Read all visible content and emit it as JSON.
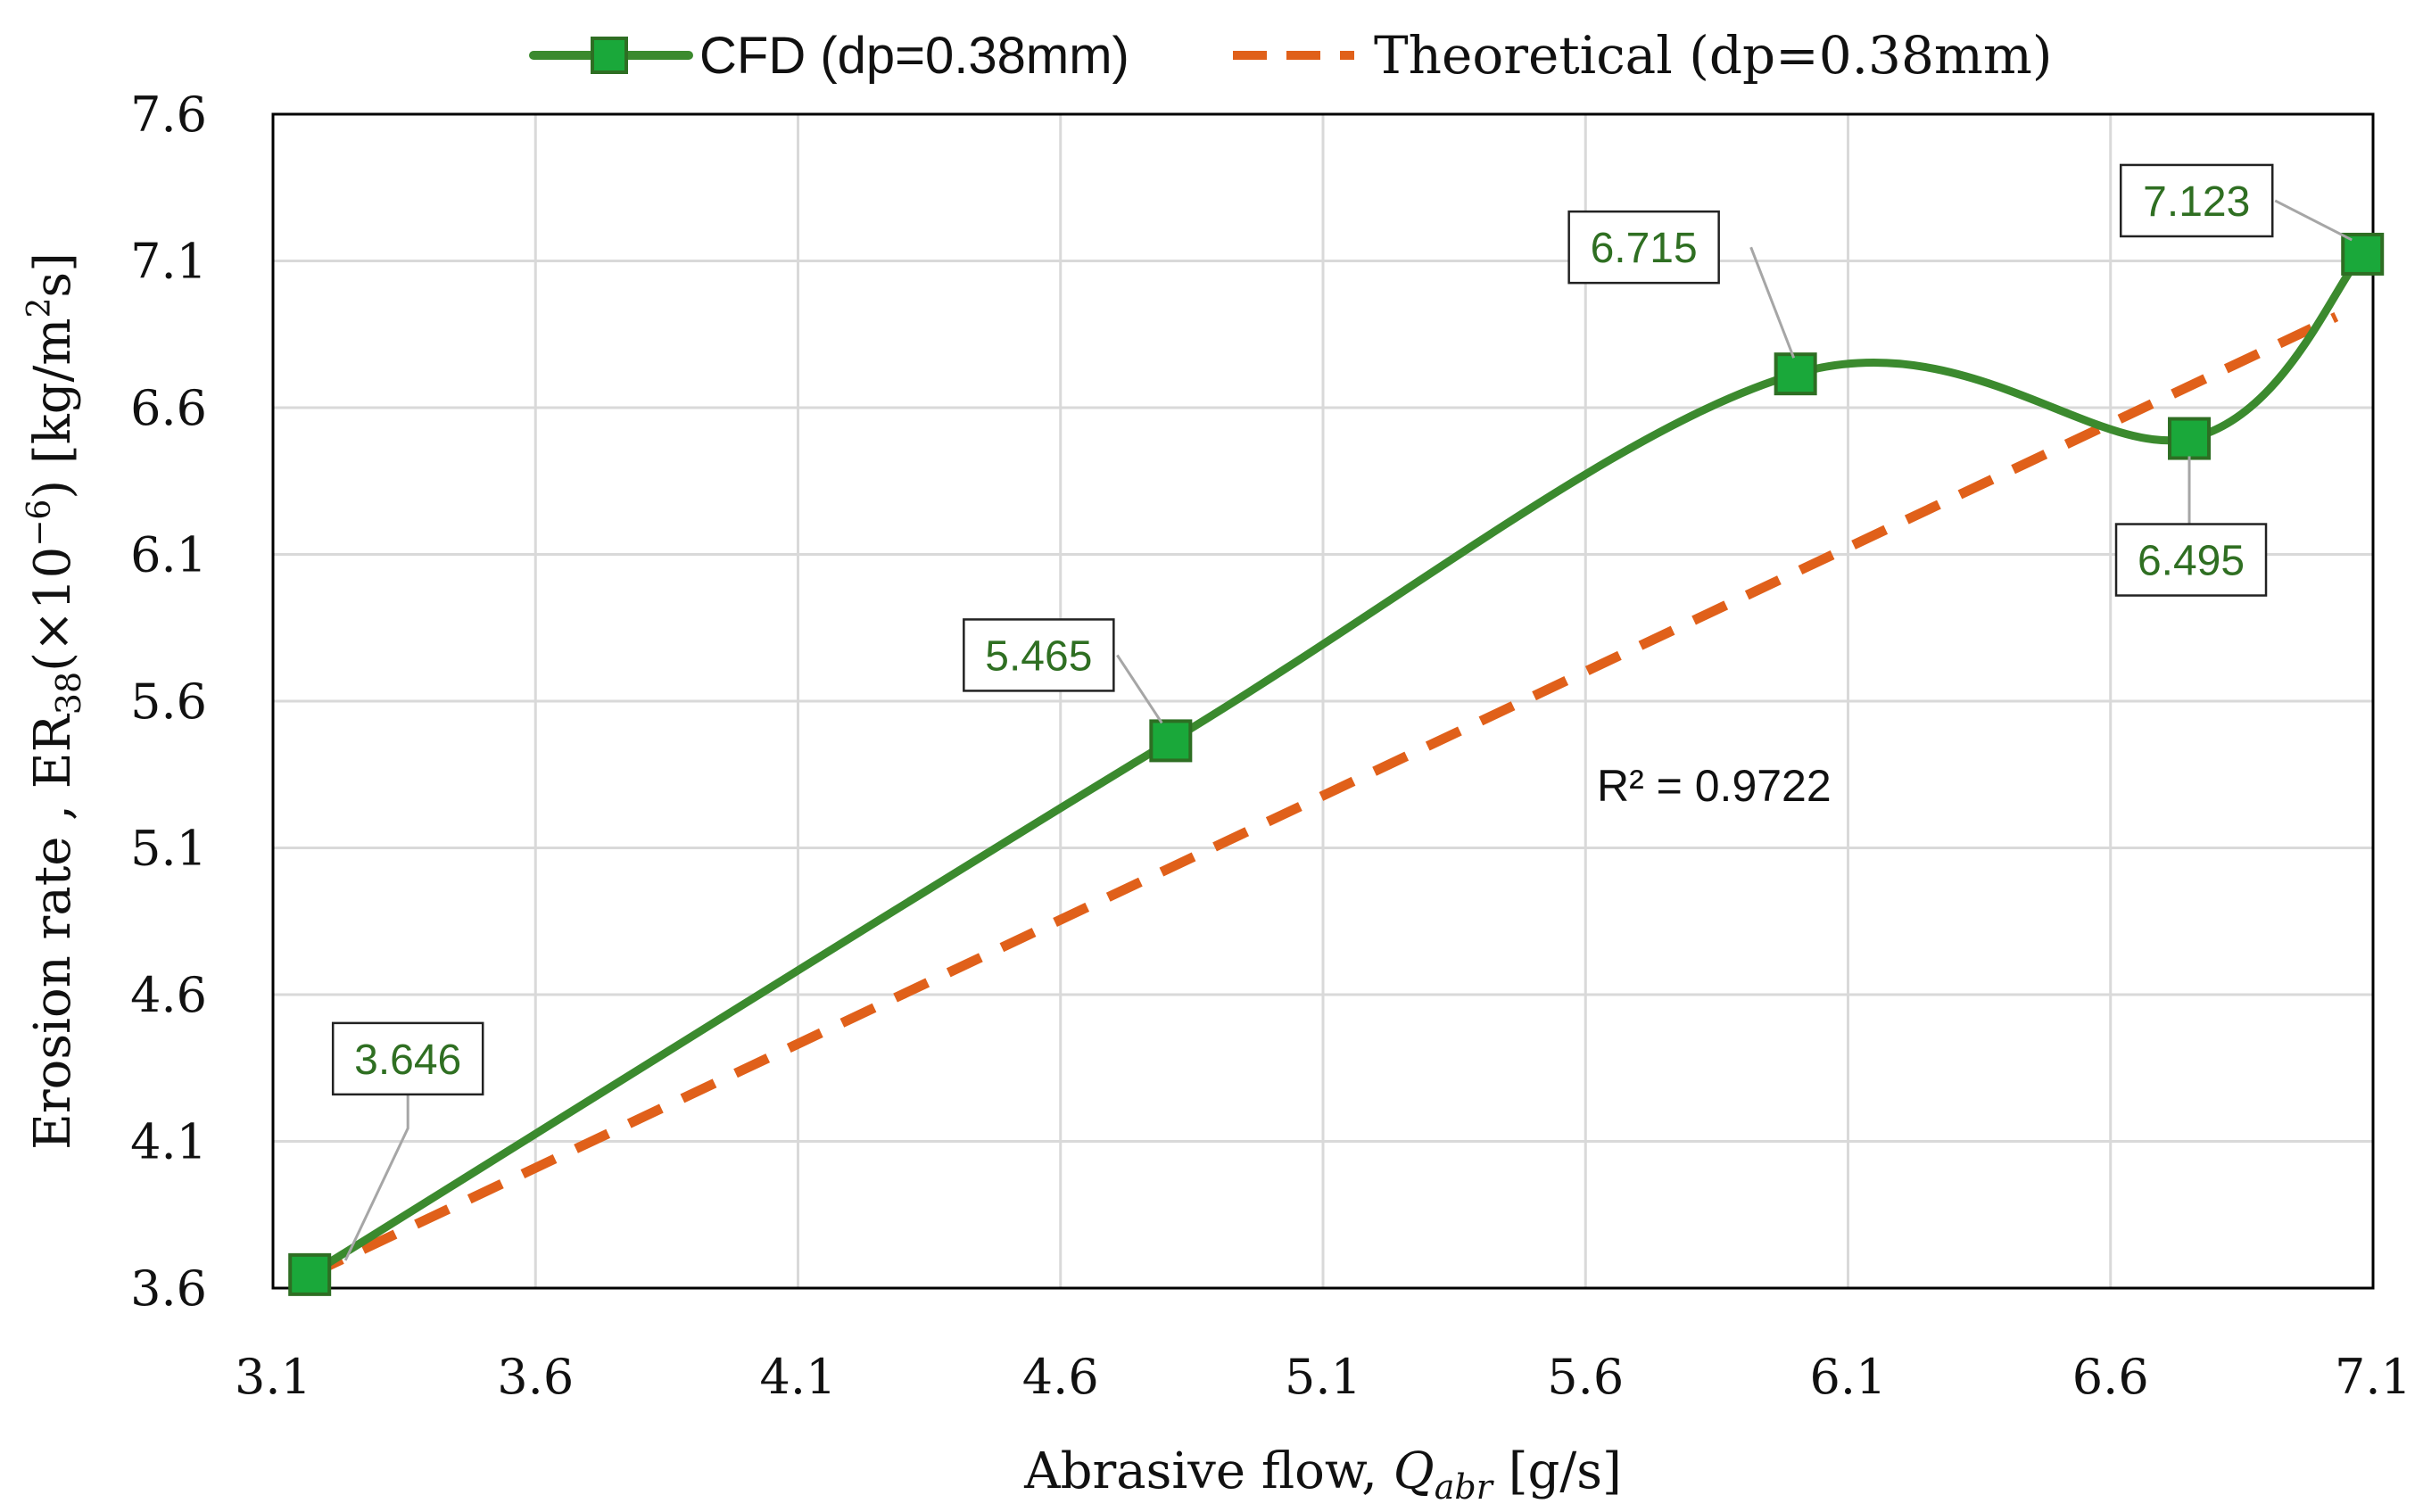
{
  "chart_data": {
    "type": "line",
    "title": "",
    "xlabel": "Abrasive flow,",
    "xlabel_symbol": "Q",
    "xlabel_subscript": "abr",
    "xlabel_unit": "[g/s]",
    "ylabel_prefix": "Erosion rate , ER",
    "ylabel_subscript": "38",
    "ylabel_mid": "(×10",
    "ylabel_exp": "−6",
    "ylabel_close": ") [kg/m",
    "ylabel_unit_exp": "2",
    "ylabel_tail": "s]",
    "xlim": [
      3.1,
      7.1
    ],
    "ylim": [
      3.6,
      7.6
    ],
    "x_ticks": [
      "3.1",
      "3.6",
      "4.1",
      "4.6",
      "5.1",
      "5.6",
      "6.1",
      "6.6",
      "7.1"
    ],
    "y_ticks": [
      "3.6",
      "4.1",
      "4.6",
      "5.1",
      "5.6",
      "6.1",
      "6.6",
      "7.1",
      "7.6"
    ],
    "grid": true,
    "legend_position": "top",
    "series": [
      {
        "name": "CFD (dp=0.38mm)",
        "style": "solid-smooth-square-markers",
        "x": [
          3.17,
          4.81,
          6.0,
          6.75,
          7.08
        ],
        "y": [
          3.646,
          5.465,
          6.715,
          6.495,
          7.123
        ],
        "labels": [
          "3.646",
          "5.465",
          "6.715",
          "6.495",
          "7.123"
        ]
      },
      {
        "name": "Theoretical (dp=0.38mm)",
        "style": "dashed-linear-trendline",
        "x": [
          3.17,
          7.03
        ],
        "y": [
          3.646,
          6.91
        ]
      }
    ],
    "annotations": [
      {
        "text": "R² = 0.9722",
        "x": 5.74,
        "y": 5.3
      }
    ]
  },
  "colors": {
    "cfd_line": "#3b8a2e",
    "cfd_marker_fill": "#1aa83a",
    "cfd_marker_edge": "#2e6e23",
    "theoretical": "#e0601a",
    "grid": "#d9d9d9",
    "axis": "#000000",
    "label_text": "#2f6f22",
    "leader": "#a6a6a6"
  }
}
